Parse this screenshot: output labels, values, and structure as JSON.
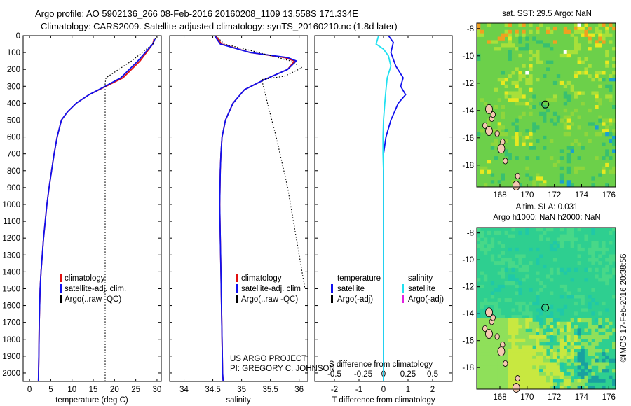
{
  "header": {
    "title_line1": "Argo profile: AO 5902136_266 08-Feb-2016 20160208_1109 13.558S 171.334E",
    "title_line2": "Climatology: CARS2009. Satellite-adjusted climatology: synTS_20160210.nc (1.8d later)"
  },
  "colors": {
    "climatology": "#e01010",
    "satellite": "#1010ee",
    "argo": "#000000",
    "sal_satellite": "#20e0f0",
    "sal_argo": "#e020e0"
  },
  "depth_axis": {
    "ylim": [
      0,
      2050
    ],
    "ticks": [
      "0",
      "100",
      "200",
      "300",
      "400",
      "500",
      "600",
      "700",
      "800",
      "900",
      "1000",
      "1100",
      "1200",
      "1300",
      "1400",
      "1500",
      "1600",
      "1700",
      "1800",
      "1900",
      "2000"
    ]
  },
  "chart_data": [
    {
      "type": "line",
      "name": "temperature-panel",
      "xlabel": "temperature (deg C)",
      "xlim": [
        -1.5,
        31
      ],
      "xticks": [
        0,
        5,
        10,
        15,
        20,
        25,
        30
      ],
      "ylim": [
        0,
        2050
      ],
      "series": [
        {
          "name": "climatology",
          "style": "solid",
          "x": [
            29.3,
            29.0,
            26.0,
            22.0,
            18.0,
            14.0,
            11.0,
            9.0,
            7.5,
            6.5,
            5.8,
            5.2,
            4.6,
            4.1,
            3.7,
            3.3,
            3.0,
            2.7,
            2.5,
            2.3,
            2.2,
            2.1
          ],
          "y": [
            20,
            50,
            150,
            250,
            300,
            350,
            400,
            450,
            500,
            600,
            700,
            800,
            900,
            1000,
            1100,
            1200,
            1300,
            1400,
            1500,
            1700,
            1900,
            2050
          ]
        },
        {
          "name": "satellite-adj. clim.",
          "style": "solid",
          "x": [
            29.5,
            29.0,
            25.5,
            21.5,
            17.8,
            14.0,
            11.0,
            9.0,
            7.5,
            6.5,
            5.8,
            5.2,
            4.6,
            4.1,
            3.7,
            3.3,
            3.0,
            2.7,
            2.5,
            2.3,
            2.2,
            2.1
          ],
          "y": [
            20,
            50,
            150,
            250,
            300,
            350,
            400,
            450,
            500,
            600,
            700,
            800,
            900,
            1000,
            1100,
            1200,
            1300,
            1400,
            1500,
            1700,
            1900,
            2050
          ]
        },
        {
          "name": "Argo(..raw -QC)",
          "style": "dotted",
          "x": [
            30.0,
            29.0,
            24.0,
            18.0,
            17.8,
            17.8,
            17.8,
            17.8,
            17.8,
            17.8
          ],
          "y": [
            0,
            50,
            150,
            250,
            280,
            500,
            1000,
            1500,
            2000,
            2050
          ]
        }
      ],
      "legend": [
        "climatology",
        "satellite-adj. clim.",
        "Argo(..raw -QC)"
      ],
      "legend_position": "lower-left"
    },
    {
      "type": "line",
      "name": "salinity-panel",
      "xlabel": "salinity",
      "xlim": [
        33.75,
        36.15
      ],
      "xticks": [
        34,
        34.5,
        35,
        35.5,
        36
      ],
      "ylim": [
        0,
        2050
      ],
      "series": [
        {
          "name": "climatology",
          "style": "solid",
          "x": [
            34.55,
            34.65,
            35.15,
            35.75,
            35.92,
            35.8,
            35.4,
            35.05,
            34.85,
            34.72,
            34.66,
            34.64,
            34.63,
            34.62,
            34.63,
            34.64,
            34.65,
            34.66,
            34.67,
            34.68
          ],
          "y": [
            0,
            50,
            100,
            130,
            150,
            200,
            260,
            320,
            400,
            500,
            600,
            700,
            800,
            1000,
            1200,
            1400,
            1600,
            1800,
            2000,
            2050
          ]
        },
        {
          "name": "satellite-adj. clim.",
          "style": "solid",
          "x": [
            34.53,
            34.63,
            35.15,
            35.8,
            35.95,
            35.8,
            35.4,
            35.05,
            34.85,
            34.72,
            34.66,
            34.64,
            34.63,
            34.62,
            34.63,
            34.64,
            34.65,
            34.66,
            34.67,
            34.68
          ],
          "y": [
            0,
            50,
            100,
            130,
            150,
            200,
            260,
            320,
            400,
            500,
            600,
            700,
            800,
            1000,
            1200,
            1400,
            1600,
            1800,
            2000,
            2050
          ]
        },
        {
          "name": "Argo(..raw -QC)",
          "style": "dotted",
          "x": [
            34.55,
            34.7,
            35.3,
            35.85,
            36.05,
            35.75,
            35.35,
            35.45,
            35.6,
            35.8,
            36.0,
            36.1
          ],
          "y": [
            0,
            50,
            100,
            150,
            190,
            240,
            260,
            400,
            600,
            900,
            1300,
            1500
          ]
        }
      ],
      "legend": [
        "climatology",
        "satellite-adj. clim",
        "Argo(..raw -QC)"
      ],
      "legend_position": "lower-left"
    },
    {
      "type": "line",
      "name": "difference-panel",
      "xlabel": "T difference from climatology",
      "xlabel2": "S difference from climatology",
      "xticks_T": [
        -2,
        -1,
        0,
        1,
        2
      ],
      "xticks_S": [
        "-0.5",
        "-0.25",
        "0",
        "0.25",
        "0.5"
      ],
      "xlim": [
        -2.8,
        2.8
      ],
      "ylim": [
        0,
        2050
      ],
      "series": [
        {
          "name": "temperature satellite",
          "style": "solid",
          "x": [
            0.2,
            0.4,
            0.3,
            0.5,
            0.8,
            0.7,
            0.9,
            0.6,
            0.3,
            0.1,
            0.0,
            0.0,
            0.0,
            0.0,
            0.0
          ],
          "y": [
            0,
            40,
            100,
            180,
            250,
            300,
            350,
            400,
            500,
            600,
            700,
            1000,
            1400,
            1800,
            2050
          ]
        },
        {
          "name": "salinity satellite",
          "style": "solid",
          "x": [
            -0.2,
            -0.3,
            0.0,
            0.2,
            0.3,
            0.15,
            0.1,
            0.05,
            0.0,
            -0.02,
            -0.02,
            0.0,
            0.0,
            0.0,
            0.0,
            0.0
          ],
          "y": [
            0,
            50,
            80,
            120,
            180,
            250,
            320,
            400,
            500,
            600,
            700,
            800,
            1000,
            1400,
            1800,
            2050
          ]
        }
      ],
      "legend_T": [
        "temperature",
        "satellite",
        "Argo(-adj)"
      ],
      "legend_S": [
        "salinity",
        "satellite",
        "Argo(-adj)"
      ],
      "legend_position": "lower-middle"
    },
    {
      "type": "heatmap",
      "name": "sst-map",
      "title": "sat. SST: 29.5 Argo: NaN",
      "xlim": [
        166.3,
        176.5
      ],
      "ylim": [
        -19.6,
        -7.6
      ],
      "xticks": [
        "168",
        "170",
        "172",
        "174",
        "176"
      ],
      "yticks": [
        "-8",
        "-10",
        "-12",
        "-14",
        "-16",
        "-18"
      ],
      "marker": {
        "lon": 171.334,
        "lat": -13.558
      }
    },
    {
      "type": "heatmap",
      "name": "sla-map",
      "title_line1": "Altim. SLA: 0.031",
      "title_line2": "Argo h1000: NaN h2000: NaN",
      "xlim": [
        166.3,
        176.5
      ],
      "ylim": [
        -19.6,
        -7.6
      ],
      "xticks": [
        "168",
        "170",
        "172",
        "174",
        "176"
      ],
      "yticks": [
        "-8",
        "-10",
        "-12",
        "-14",
        "-16",
        "-18"
      ],
      "marker": {
        "lon": 171.334,
        "lat": -13.558
      }
    }
  ],
  "legends": {
    "temp": [
      "climatology",
      "satellite-adj. clim.",
      "Argo(..raw -QC)"
    ],
    "sal": [
      "climatology",
      "satellite-adj. clim",
      "Argo(..raw -QC)"
    ],
    "diff_T": [
      "temperature",
      "satellite",
      "Argo(-adj)"
    ],
    "diff_S": [
      "salinity",
      "satellite",
      "Argo(-adj)"
    ]
  },
  "credits": {
    "project": "US ARGO PROJECT",
    "pi": "PI: GREGORY C. JOHNSON"
  },
  "side_stamp": "©IMOS 17-Feb-2016 20:38:56"
}
